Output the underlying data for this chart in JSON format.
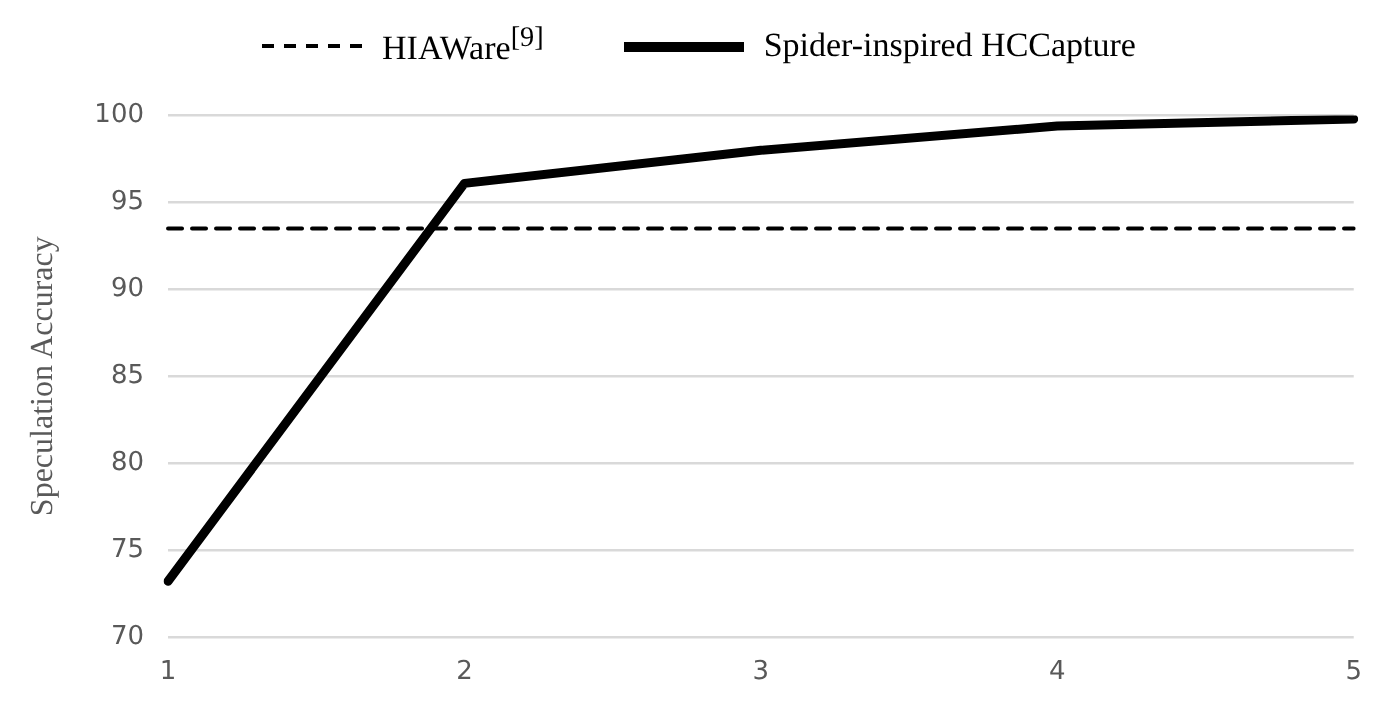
{
  "chart_data": {
    "type": "line",
    "ylabel": "Speculation Accuracy",
    "categories": [
      "1",
      "2",
      "3",
      "4",
      "5"
    ],
    "series": [
      {
        "name": "HIAWare$^{[9]}$",
        "color": "#000000",
        "line_style": "dashed",
        "values": [
          93.5,
          93.5,
          93.5,
          93.5,
          93.5
        ]
      },
      {
        "name": "Spider-inspired HCCapture",
        "color": "#000000",
        "line_style": "solid",
        "values": [
          73.2,
          96.1,
          98.0,
          99.4,
          99.8
        ]
      }
    ],
    "ylim": [
      70,
      100
    ],
    "yticks": [
      70,
      75,
      80,
      85,
      90,
      95,
      100
    ],
    "grid": "y",
    "legend": "top",
    "marker": "none"
  }
}
